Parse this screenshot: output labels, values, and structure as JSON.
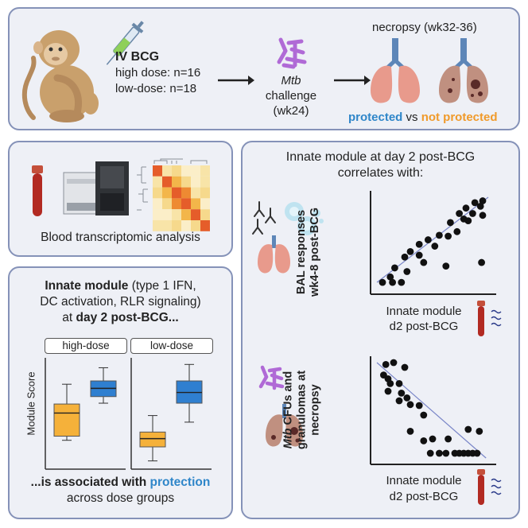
{
  "top": {
    "iv_bcg": "IV BCG",
    "high_dose": "high dose: n=16",
    "low_dose": "low-dose: n=18",
    "mtb": "Mtb",
    "challenge": "challenge",
    "challenge_week": "(wk24)",
    "necropsy": "necropsy (wk32-36)",
    "protected": "protected",
    "vs": "vs",
    "not_protected": "not protected"
  },
  "blood": {
    "label": "Blood transcriptomic analysis"
  },
  "innate": {
    "line1_bold": "Innate module",
    "line1_rest": " (type 1 IFN,",
    "line2": "DC activation, RLR signaling)",
    "line3_pre": "at ",
    "line3_bold": "day 2 post-BCG...",
    "tab_high": "high-dose",
    "tab_low": "low-dose",
    "ylabel": "Module Score",
    "footer_bold": "...is associated with",
    "footer_protection": "protection",
    "footer2": "across dose groups"
  },
  "correlation": {
    "title1": "Innate module at day 2 post-BCG",
    "title2": "correlates with:",
    "plot1_ylabel1": "BAL responses",
    "plot1_ylabel2": "wk4-8 post-BCG",
    "plot1_xlabel1": "Innate module",
    "plot1_xlabel2": "d2 post-BCG",
    "plot2_ylabel_mtb": "Mtb",
    "plot2_ylabel1": " CFUs and",
    "plot2_ylabel2": "granulomas at",
    "plot2_ylabel3": "necropsy",
    "plot2_xlabel1": "Innate module",
    "plot2_xlabel2": "d2 post-BCG"
  },
  "colors": {
    "protected": "#2f86c9",
    "not_protected": "#f09a2a",
    "box_high_color": "#2f7fd0",
    "box_low_color": "#f5b13a",
    "panel_border": "#8592b8",
    "mtb_purple": "#b06ad6"
  },
  "chart_data": [
    {
      "type": "box",
      "ylabel": "Module Score",
      "groups": [
        {
          "name": "high-dose",
          "boxes": [
            {
              "color": "orange",
              "whisker_low": 0.2,
              "q1": 0.25,
              "median": 0.53,
              "q3": 0.64,
              "whisker_high": 0.88
            },
            {
              "color": "blue",
              "whisker_low": 0.65,
              "q1": 0.73,
              "median": 0.83,
              "q3": 0.92,
              "whisker_high": 1.08
            }
          ]
        },
        {
          "name": "low-dose",
          "boxes": [
            {
              "color": "orange",
              "whisker_low": -0.05,
              "q1": 0.12,
              "median": 0.22,
              "q3": 0.3,
              "whisker_high": 0.5
            },
            {
              "color": "blue",
              "whisker_low": 0.42,
              "q1": 0.65,
              "median": 0.78,
              "q3": 0.92,
              "whisker_high": 1.12
            }
          ]
        }
      ]
    },
    {
      "type": "scatter",
      "xlabel": "Innate module d2 post-BCG",
      "ylabel": "BAL responses wk4-8 post-BCG",
      "trend": "positive",
      "points": [
        [
          0.05,
          0.06
        ],
        [
          0.12,
          0.12
        ],
        [
          0.14,
          0.06
        ],
        [
          0.22,
          0.06
        ],
        [
          0.16,
          0.22
        ],
        [
          0.27,
          0.18
        ],
        [
          0.25,
          0.34
        ],
        [
          0.3,
          0.4
        ],
        [
          0.38,
          0.36
        ],
        [
          0.42,
          0.28
        ],
        [
          0.38,
          0.48
        ],
        [
          0.46,
          0.53
        ],
        [
          0.52,
          0.46
        ],
        [
          0.56,
          0.58
        ],
        [
          0.62,
          0.24
        ],
        [
          0.66,
          0.72
        ],
        [
          0.64,
          0.57
        ],
        [
          0.72,
          0.62
        ],
        [
          0.74,
          0.82
        ],
        [
          0.78,
          0.76
        ],
        [
          0.8,
          0.88
        ],
        [
          0.82,
          0.74
        ],
        [
          0.86,
          0.82
        ],
        [
          0.88,
          0.94
        ],
        [
          0.95,
          0.96
        ],
        [
          0.93,
          0.9
        ],
        [
          0.95,
          0.8
        ],
        [
          0.94,
          0.28
        ]
      ]
    },
    {
      "type": "scatter",
      "xlabel": "Innate module d2 post-BCG",
      "ylabel": "Mtb CFUs and granulomas at necropsy",
      "trend": "negative",
      "points": [
        [
          0.06,
          0.87
        ],
        [
          0.1,
          0.83
        ],
        [
          0.12,
          0.78
        ],
        [
          0.1,
          0.7
        ],
        [
          0.2,
          0.78
        ],
        [
          0.22,
          0.68
        ],
        [
          0.27,
          0.63
        ],
        [
          0.2,
          0.6
        ],
        [
          0.3,
          0.56
        ],
        [
          0.38,
          0.55
        ],
        [
          0.42,
          0.45
        ],
        [
          0.3,
          0.28
        ],
        [
          0.42,
          0.18
        ],
        [
          0.5,
          0.2
        ],
        [
          0.48,
          0.05
        ],
        [
          0.56,
          0.05
        ],
        [
          0.62,
          0.05
        ],
        [
          0.64,
          0.2
        ],
        [
          0.7,
          0.05
        ],
        [
          0.74,
          0.05
        ],
        [
          0.78,
          0.05
        ],
        [
          0.82,
          0.05
        ],
        [
          0.86,
          0.05
        ],
        [
          0.9,
          0.05
        ],
        [
          0.82,
          0.3
        ],
        [
          0.92,
          0.28
        ],
        [
          0.25,
          0.95
        ],
        [
          0.08,
          0.98
        ],
        [
          0.15,
          1.0
        ]
      ]
    }
  ]
}
